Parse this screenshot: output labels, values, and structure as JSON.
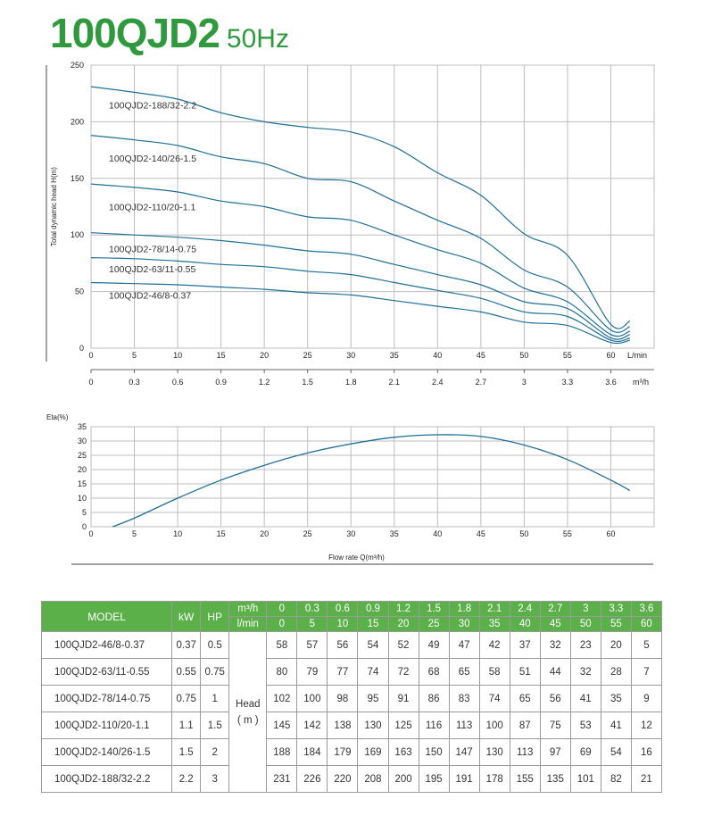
{
  "header": {
    "model": "100QJD2",
    "freq": "50Hz"
  },
  "chart_data": [
    {
      "type": "line",
      "ylabel": "Total dynamic head H(m)",
      "xlabel": "",
      "x_unit": "L/min",
      "x2_unit": "m³/h",
      "xlim": [
        0,
        65
      ],
      "ylim": [
        0,
        250
      ],
      "x_ticks": [
        "0",
        "5",
        "10",
        "15",
        "20",
        "25",
        "30",
        "35",
        "40",
        "45",
        "50",
        "55",
        "60"
      ],
      "x2_ticks": [
        "0",
        "0.3",
        "0.6",
        "0.9",
        "1.2",
        "1.5",
        "1.8",
        "2.1",
        "2.4",
        "2.7",
        "3",
        "3.3",
        "3.6"
      ],
      "y_ticks": [
        "0",
        "50",
        "100",
        "150",
        "200",
        "250"
      ],
      "grid": true,
      "x": [
        0,
        5,
        10,
        15,
        20,
        25,
        30,
        35,
        40,
        45,
        50,
        55,
        60
      ],
      "series": [
        {
          "name": "100QJD2-188/32-2.2",
          "values": [
            231,
            226,
            220,
            208,
            200,
            195,
            191,
            178,
            155,
            135,
            101,
            82,
            21
          ]
        },
        {
          "name": "100QJD2-140/26-1.5",
          "values": [
            188,
            184,
            179,
            169,
            163,
            150,
            147,
            130,
            113,
            97,
            69,
            54,
            16
          ]
        },
        {
          "name": "100QJD2-110/20-1.1",
          "values": [
            145,
            142,
            138,
            130,
            125,
            116,
            113,
            100,
            87,
            75,
            53,
            41,
            12
          ]
        },
        {
          "name": "100QJD2-78/14-0.75",
          "values": [
            102,
            100,
            98,
            95,
            91,
            86,
            83,
            74,
            65,
            56,
            41,
            35,
            9
          ]
        },
        {
          "name": "100QJD2-63/11-0.55",
          "values": [
            80,
            79,
            77,
            74,
            72,
            68,
            65,
            58,
            51,
            44,
            32,
            28,
            7
          ]
        },
        {
          "name": "100QJD2-46/8-0.37",
          "values": [
            58,
            57,
            56,
            54,
            52,
            49,
            47,
            42,
            37,
            32,
            23,
            20,
            5
          ]
        }
      ],
      "label_pos_y": [
        215,
        168,
        125,
        88,
        70,
        47
      ],
      "curve_end_x": [
        62.2,
        62.2,
        62.2,
        62.2,
        62.2,
        62.2
      ],
      "curve_end_y": [
        24,
        19,
        15,
        12,
        9,
        7
      ]
    },
    {
      "type": "line",
      "ylabel": "Eta(%)",
      "xlabel": "Flow rate Q(m³/h)",
      "xlim": [
        0,
        65
      ],
      "ylim": [
        0,
        35
      ],
      "x_ticks": [
        "0",
        "5",
        "10",
        "15",
        "20",
        "25",
        "30",
        "35",
        "40",
        "45",
        "50",
        "55",
        "60"
      ],
      "y_ticks": [
        "0",
        "5",
        "10",
        "15",
        "20",
        "25",
        "30",
        "35"
      ],
      "grid": true,
      "x": [
        2.5,
        5,
        10,
        15,
        20,
        25,
        30,
        35,
        40,
        45,
        50,
        55,
        60,
        62.2
      ],
      "values": [
        0,
        3,
        10,
        16.3,
        21.5,
        25.8,
        29,
        31.3,
        32.2,
        31.6,
        28.6,
        23.5,
        16.3,
        12.7
      ]
    }
  ],
  "table": {
    "model_header": "MODEL",
    "kw_header": "kW",
    "hp_header": "HP",
    "unit1": "m³/h",
    "unit2": "l/min",
    "m3h": [
      "0",
      "0.3",
      "0.6",
      "0.9",
      "1.2",
      "1.5",
      "1.8",
      "2.1",
      "2.4",
      "2.7",
      "3",
      "3.3",
      "3.6"
    ],
    "lmin": [
      "0",
      "5",
      "10",
      "15",
      "20",
      "25",
      "30",
      "35",
      "40",
      "45",
      "50",
      "55",
      "60"
    ],
    "head_label_1": "Head",
    "head_label_2": "( m )",
    "rows": [
      {
        "model": "100QJD2-46/8-0.37",
        "kw": "0.37",
        "hp": "0.5",
        "values": [
          "58",
          "57",
          "56",
          "54",
          "52",
          "49",
          "47",
          "42",
          "37",
          "32",
          "23",
          "20",
          "5"
        ]
      },
      {
        "model": "100QJD2-63/11-0.55",
        "kw": "0.55",
        "hp": "0.75",
        "values": [
          "80",
          "79",
          "77",
          "74",
          "72",
          "68",
          "65",
          "58",
          "51",
          "44",
          "32",
          "28",
          "7"
        ]
      },
      {
        "model": "100QJD2-78/14-0.75",
        "kw": "0.75",
        "hp": "1",
        "values": [
          "102",
          "100",
          "98",
          "95",
          "91",
          "86",
          "83",
          "74",
          "65",
          "56",
          "41",
          "35",
          "9"
        ]
      },
      {
        "model": "100QJD2-110/20-1.1",
        "kw": "1.1",
        "hp": "1.5",
        "values": [
          "145",
          "142",
          "138",
          "130",
          "125",
          "116",
          "113",
          "100",
          "87",
          "75",
          "53",
          "41",
          "12"
        ]
      },
      {
        "model": "100QJD2-140/26-1.5",
        "kw": "1.5",
        "hp": "2",
        "values": [
          "188",
          "184",
          "179",
          "169",
          "163",
          "150",
          "147",
          "130",
          "113",
          "97",
          "69",
          "54",
          "16"
        ]
      },
      {
        "model": "100QJD2-188/32-2.2",
        "kw": "2.2",
        "hp": "3",
        "values": [
          "231",
          "226",
          "220",
          "208",
          "200",
          "195",
          "191",
          "178",
          "155",
          "135",
          "101",
          "82",
          "21"
        ]
      }
    ]
  },
  "colors": {
    "curve": "#1f6f97",
    "grid": "#bdbdbd",
    "table_header": "#5bb04a",
    "title": "#2f9a3d"
  }
}
